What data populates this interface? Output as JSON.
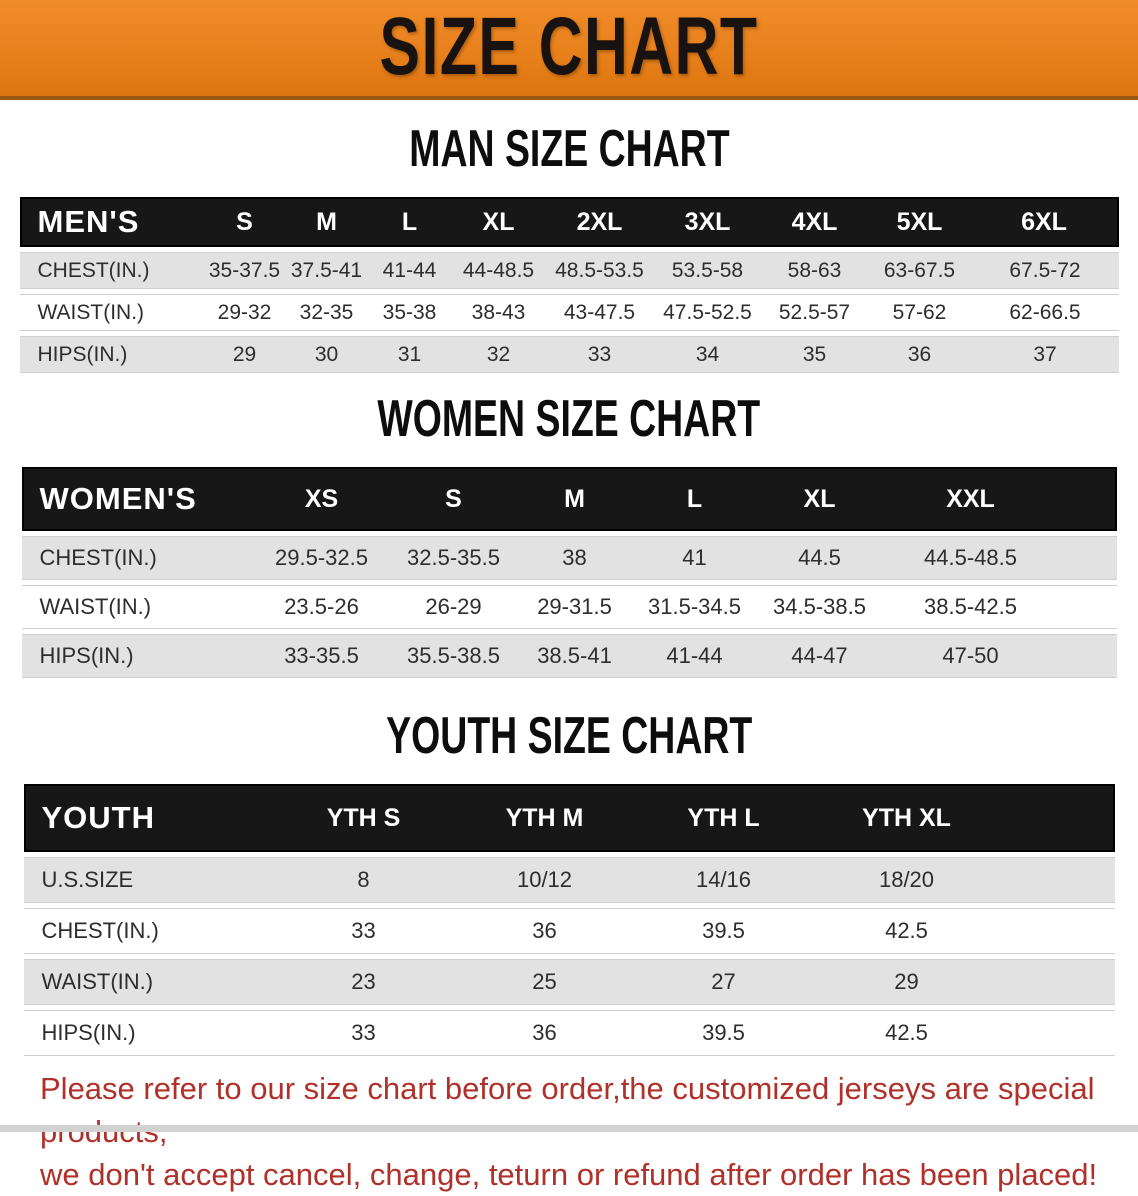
{
  "banner": {
    "title": "SIZE CHART"
  },
  "sections": {
    "men": {
      "heading": "MAN SIZE CHART",
      "table": {
        "header": [
          "MEN'S",
          "S",
          "M",
          "L",
          "XL",
          "2XL",
          "3XL",
          "4XL",
          "5XL",
          "6XL"
        ],
        "rows": [
          [
            "CHEST(IN.)",
            "35-37.5",
            "37.5-41",
            "41-44",
            "44-48.5",
            "48.5-53.5",
            "53.5-58",
            "58-63",
            "63-67.5",
            "67.5-72"
          ],
          [
            "WAIST(IN.)",
            "29-32",
            "32-35",
            "35-38",
            "38-43",
            "43-47.5",
            "47.5-52.5",
            "52.5-57",
            "57-62",
            "62-66.5"
          ],
          [
            "HIPS(IN.)",
            "29",
            "30",
            "31",
            "32",
            "33",
            "34",
            "35",
            "36",
            "37"
          ]
        ]
      }
    },
    "women": {
      "heading": "WOMEN SIZE CHART",
      "table": {
        "header": [
          "WOMEN'S",
          "XS",
          "S",
          "M",
          "L",
          "XL",
          "XXL"
        ],
        "rows": [
          [
            "CHEST(IN.)",
            "29.5-32.5",
            "32.5-35.5",
            "38",
            "41",
            "44.5",
            "44.5-48.5"
          ],
          [
            "WAIST(IN.)",
            "23.5-26",
            "26-29",
            "29-31.5",
            "31.5-34.5",
            "34.5-38.5",
            "38.5-42.5"
          ],
          [
            "HIPS(IN.)",
            "33-35.5",
            "35.5-38.5",
            "38.5-41",
            "41-44",
            "44-47",
            "47-50"
          ]
        ]
      }
    },
    "youth": {
      "heading": "YOUTH SIZE CHART",
      "table": {
        "header": [
          "YOUTH",
          "YTH S",
          "YTH M",
          "YTH L",
          "YTH XL"
        ],
        "rows": [
          [
            "U.S.SIZE",
            "8",
            "10/12",
            "14/16",
            "18/20"
          ],
          [
            "CHEST(IN.)",
            "33",
            "36",
            "39.5",
            "42.5"
          ],
          [
            "WAIST(IN.)",
            "23",
            "25",
            "27",
            "29"
          ],
          [
            "HIPS(IN.)",
            "33",
            "36",
            "39.5",
            "42.5"
          ]
        ]
      }
    }
  },
  "footer": {
    "line1": "Please refer to our size chart before order,the customized jerseys are special products,",
    "line2": "we don't accept cancel, change, teturn or refund after order has been placed!"
  },
  "colors": {
    "banner_orange": "#e8811c",
    "banner_edge": "#9b5a13",
    "header_bar_black": "#171717",
    "row_shade_gray": "#e2e2e2",
    "body_text": "#2d2d2d",
    "notice_red": "#b0302a"
  }
}
